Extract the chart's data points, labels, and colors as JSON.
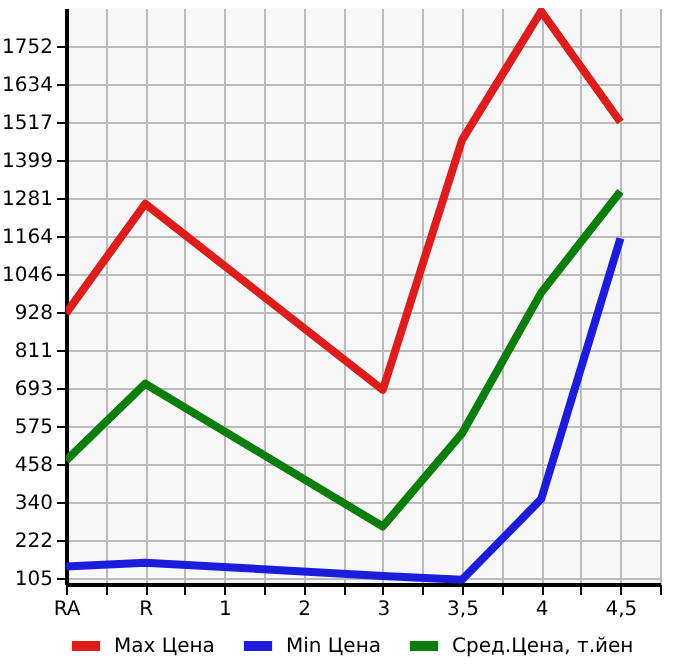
{
  "chart_data": {
    "type": "line",
    "categories": [
      "RA",
      "R",
      "1",
      "2",
      "3",
      "3,5",
      "4",
      "4,5"
    ],
    "series": [
      {
        "name": "Max Цена",
        "color": "#dd1c1c",
        "values": [
          925,
          1264,
          null,
          null,
          688,
          1461,
          1860,
          1517
        ]
      },
      {
        "name": "Min Цена",
        "color": "#1c1cdd",
        "values": [
          141,
          153,
          null,
          null,
          112,
          100,
          350,
          1157
        ]
      },
      {
        "name": "Сред.Цена, т.йен",
        "color": "#0a7d0a",
        "values": [
          469,
          707,
          null,
          null,
          265,
          553,
          989,
          1302
        ]
      }
    ],
    "ylim": [
      87,
      1870
    ],
    "yticks": [
      105,
      222,
      340,
      458,
      575,
      693,
      811,
      928,
      1046,
      1164,
      1281,
      1399,
      1517,
      1634,
      1752
    ],
    "grid": true,
    "legend": "bottom",
    "marker": "none",
    "line_style": "solid"
  }
}
